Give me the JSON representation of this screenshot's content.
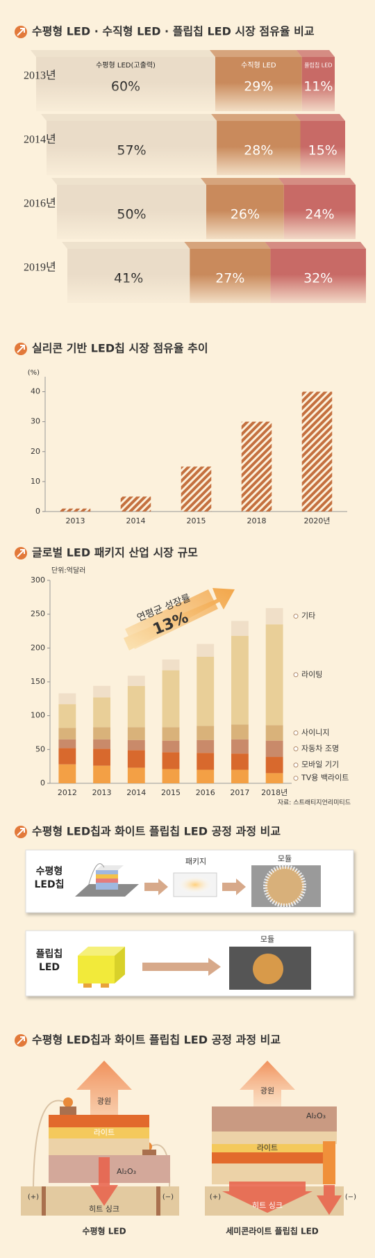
{
  "chart_data": [
    {
      "type": "bar",
      "orientation": "horizontal",
      "stacked": true,
      "title": "수평형 LED · 수직형 LED · 플립칩 LED 시장 점유율 비교",
      "categories": [
        "2013년",
        "2014년",
        "2016년",
        "2019년"
      ],
      "xlim": [
        0,
        100
      ],
      "series": [
        {
          "name": "수평형 LED(고출력)",
          "color": "#eadcc8",
          "values": [
            60,
            57,
            50,
            41
          ],
          "value_labels": [
            "60%",
            "57%",
            "50%",
            "41%"
          ]
        },
        {
          "name": "수직형 LED",
          "color": "#c98a5c",
          "values": [
            29,
            28,
            26,
            27
          ],
          "value_labels": [
            "29%",
            "28%",
            "26%",
            "27%"
          ]
        },
        {
          "name": "플립칩 LED",
          "color": "#c86a66",
          "values": [
            11,
            15,
            24,
            32
          ],
          "value_labels": [
            "11%",
            "15%",
            "24%",
            "32%"
          ]
        }
      ]
    },
    {
      "type": "bar",
      "title": "실리콘 기반 LED칩 시장 점유율 추이",
      "ylabel": "(%)",
      "categories": [
        "2013",
        "2014",
        "2015",
        "2018",
        "2020년"
      ],
      "values": [
        1,
        5,
        15,
        30,
        40
      ],
      "color": "#c4703f",
      "hatch": true,
      "ylim": [
        0,
        45
      ],
      "yticks": [
        0,
        10,
        20,
        30,
        40
      ]
    },
    {
      "type": "bar",
      "stacked": true,
      "title": "글로벌 LED 패키지 산업 시장 규모",
      "unit": "단위:억달러",
      "annotations": [
        "연평균 성장률",
        "13%"
      ],
      "source": "자료: 스트래티지언리미티드",
      "categories": [
        "2012",
        "2013",
        "2014",
        "2015",
        "2016",
        "2017",
        "2018년"
      ],
      "ylim": [
        0,
        300
      ],
      "yticks": [
        0,
        50,
        100,
        150,
        200,
        250,
        300
      ],
      "series": [
        {
          "name": "TV용 백라이트",
          "color": "#f3a045",
          "values": [
            28,
            26,
            23,
            21,
            20,
            20,
            15
          ]
        },
        {
          "name": "모바일 기기",
          "color": "#d8692d",
          "values": [
            24,
            25,
            26,
            25,
            25,
            24,
            24
          ]
        },
        {
          "name": "자동차 조명",
          "color": "#c98a6a",
          "values": [
            13,
            14,
            15,
            17,
            19,
            21,
            24
          ]
        },
        {
          "name": "사이니지",
          "color": "#d9b27a",
          "values": [
            17,
            18,
            19,
            20,
            21,
            22,
            23
          ]
        },
        {
          "name": "라이팅",
          "color": "#e9cf98",
          "values": [
            35,
            44,
            61,
            84,
            102,
            131,
            149
          ]
        },
        {
          "name": "기타",
          "color": "#f0dfc8",
          "values": [
            16,
            17,
            15,
            16,
            19,
            22,
            24
          ]
        }
      ]
    }
  ],
  "process": {
    "title": "수평형 LED칩과 화이트 플립칩 LED 공정 과정 비교",
    "rows": [
      {
        "label": "수평형 LED칩",
        "steps": [
          "패키지",
          "모듈"
        ]
      },
      {
        "label": "플립칩 LED",
        "steps": [
          "모듈"
        ]
      }
    ]
  },
  "structure": {
    "title": "수평형 LED칩과 화이트 플립칩 LED 공정 과정 비교",
    "left": {
      "caption": "수평형 LED",
      "light": "광원",
      "layer": "라이트",
      "substrate": "Al₂O₃",
      "plus": "(+)",
      "minus": "(−)",
      "sink": "히트 싱크"
    },
    "right": {
      "caption": "세미콘라이트 플립칩 LED",
      "light": "광원",
      "layer": "라이트",
      "substrate": "Al₂O₃",
      "plus": "(+)",
      "minus": "(−)",
      "sink": "히트 싱크"
    }
  }
}
